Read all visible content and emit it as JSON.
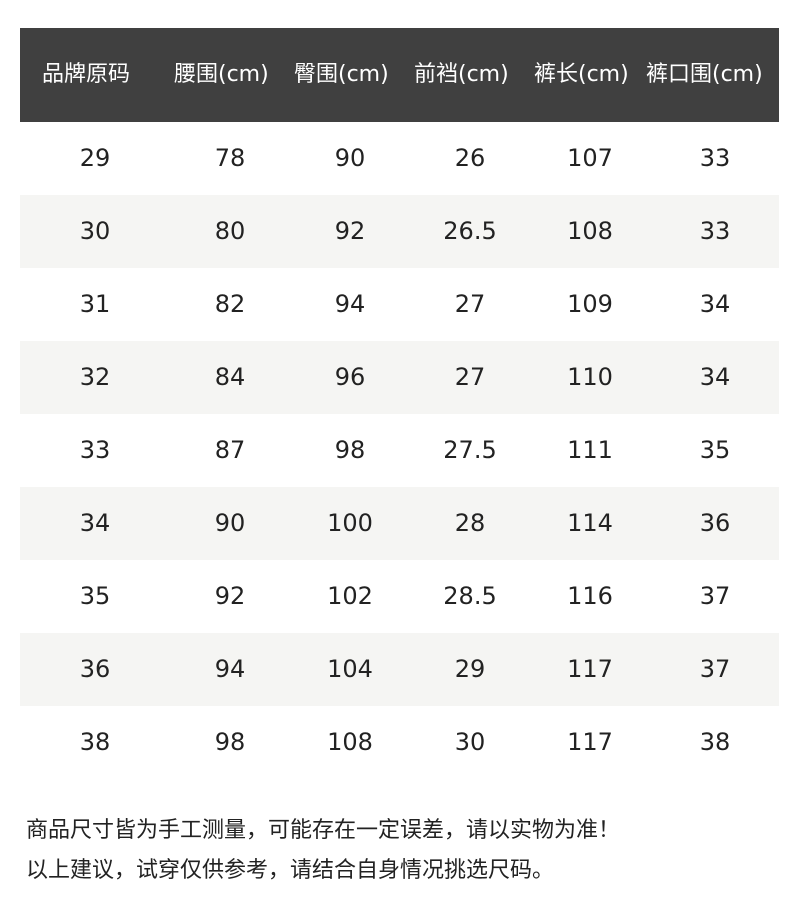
{
  "table": {
    "headers": [
      "品牌原码",
      "腰围(cm)",
      "臀围(cm)",
      "前裆(cm)",
      "裤长(cm)",
      "裤口围(cm)"
    ],
    "rows": [
      [
        "29",
        "78",
        "90",
        "26",
        "107",
        "33"
      ],
      [
        "30",
        "80",
        "92",
        "26.5",
        "108",
        "33"
      ],
      [
        "31",
        "82",
        "94",
        "27",
        "109",
        "34"
      ],
      [
        "32",
        "84",
        "96",
        "27",
        "110",
        "34"
      ],
      [
        "33",
        "87",
        "98",
        "27.5",
        "111",
        "35"
      ],
      [
        "34",
        "90",
        "100",
        "28",
        "114",
        "36"
      ],
      [
        "35",
        "92",
        "102",
        "28.5",
        "116",
        "37"
      ],
      [
        "36",
        "94",
        "104",
        "29",
        "117",
        "37"
      ],
      [
        "38",
        "98",
        "108",
        "30",
        "117",
        "38"
      ]
    ]
  },
  "notes": [
    "商品尺寸皆为手工测量，可能存在一定误差，请以实物为准！",
    "以上建议，试穿仅供参考，请结合自身情况挑选尺码。"
  ],
  "colors": {
    "header_bg": "#404040",
    "alt_row_bg": "#f5f5f3",
    "text": "#222222"
  }
}
